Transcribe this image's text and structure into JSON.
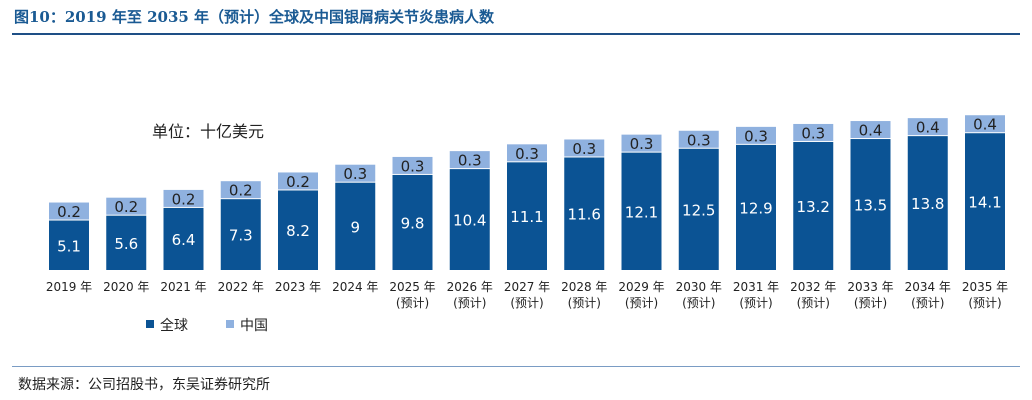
{
  "title": "图10：2019 年至 2035 年（预计）全球及中国银屑病关节炎患病人数",
  "source": "数据来源：公司招股书，东吴证券研究所",
  "unit": "单位：十亿美元",
  "colors": {
    "global": "#0b5394",
    "china": "#8fb1df",
    "title": "#1a5a93"
  },
  "chart_data": {
    "type": "bar",
    "stacked": true,
    "categories": [
      "2019 年",
      "2020 年",
      "2021 年",
      "2022 年",
      "2023 年",
      "2024 年",
      "2025 年",
      "2026 年",
      "2027 年",
      "2028 年",
      "2029 年",
      "2030 年",
      "2031 年",
      "2032 年",
      "2033 年",
      "2034 年",
      "2035 年"
    ],
    "category_notes": [
      "",
      "",
      "",
      "",
      "",
      "",
      "(预计)",
      "(预计)",
      "(预计)",
      "(预计)",
      "(预计)",
      "(预计)",
      "(预计)",
      "(预计)",
      "(预计)",
      "(预计)",
      "(预计)"
    ],
    "series": [
      {
        "name": "全球",
        "values": [
          5.1,
          5.6,
          6.4,
          7.3,
          8.2,
          9,
          9.8,
          10.4,
          11.1,
          11.6,
          12.1,
          12.5,
          12.9,
          13.2,
          13.5,
          13.8,
          14.1
        ]
      },
      {
        "name": "中国",
        "values": [
          0.2,
          0.2,
          0.2,
          0.2,
          0.2,
          0.3,
          0.3,
          0.3,
          0.3,
          0.3,
          0.3,
          0.3,
          0.3,
          0.3,
          0.4,
          0.4,
          0.4
        ]
      }
    ],
    "legend_position": "bottom-left",
    "grid": false
  }
}
